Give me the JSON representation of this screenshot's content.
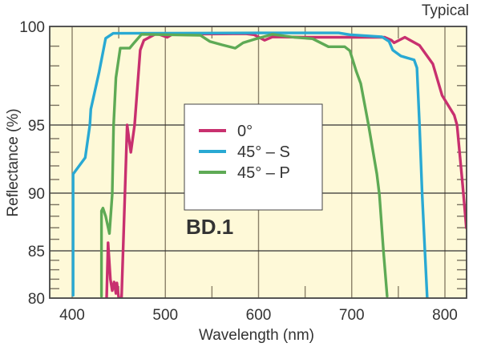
{
  "chart_data": {
    "type": "line",
    "title": "",
    "corner_note": "Typical",
    "annotation": "BD.1",
    "xlabel": "Wavelength (nm)",
    "ylabel": "Reflectance (%)",
    "xlim": [
      376,
      823
    ],
    "ylim": [
      80,
      100
    ],
    "yscale": "nonlinear (expanded toward 100)",
    "x_ticks": [
      400,
      500,
      600,
      700,
      800
    ],
    "x_minor_ticks": [
      450,
      550,
      650,
      750
    ],
    "y_ticks": [
      80,
      85,
      90,
      95,
      100
    ],
    "y_minor_step": 1,
    "grid": true,
    "legend_position": "center",
    "colors": {
      "plot_background": "#FEF9D8",
      "grid": "#333333",
      "vgrid": "#8A8068"
    },
    "series": [
      {
        "name": "0°",
        "color": "#C8306F",
        "x": [
          437,
          438.5,
          441,
          443,
          445,
          447,
          448,
          450,
          453,
          459,
          463,
          467,
          473,
          477,
          489,
          493,
          502,
          507.5,
          560,
          586,
          595,
          606.5,
          615,
          650,
          700,
          735.5,
          742.6,
          745.5,
          757,
          772.7,
          787,
          797,
          810,
          813,
          819,
          823
        ],
        "y": [
          80,
          85.7,
          82,
          80.8,
          81.7,
          80.5,
          81.6,
          80,
          80,
          95,
          93,
          95,
          98.8,
          99.3,
          99.6,
          99.6,
          99.45,
          99.6,
          99.62,
          99.63,
          99.58,
          99.3,
          99.47,
          99.45,
          99.45,
          99.45,
          99.3,
          99.17,
          99.45,
          99.04,
          98.1,
          96.5,
          95.5,
          95,
          90.6,
          87
        ]
      },
      {
        "name": "45° – S",
        "color": "#29A9D3",
        "x": [
          401,
          401,
          414,
          419,
          420,
          429,
          436,
          444,
          600,
          686,
          698,
          732.5,
          740,
          744,
          752.7,
          767,
          770,
          772.7,
          775.6,
          778.5,
          781
        ],
        "y": [
          80.3,
          91.4,
          92.6,
          95,
          95.8,
          97.7,
          99.4,
          99.65,
          99.67,
          99.67,
          99.58,
          99.47,
          99.24,
          98.8,
          98.5,
          98.3,
          97.9,
          95,
          89.9,
          85,
          80
        ]
      },
      {
        "name": "45° – P",
        "color": "#5EAA55",
        "x": [
          431.5,
          431.5,
          433,
          436,
          440,
          443,
          444.5,
          447,
          451.6,
          461.7,
          467,
          474.5,
          500,
          537.6,
          547.7,
          560.6,
          575,
          583.5,
          595,
          603.6,
          615,
          638,
          658,
          675,
          692.5,
          698,
          705,
          709.7,
          718,
          727,
          729.7,
          734,
          738
        ],
        "y": [
          80.2,
          88.45,
          88.7,
          88,
          86.5,
          89.9,
          95,
          97.4,
          98.9,
          98.9,
          99.2,
          99.6,
          99.58,
          99.55,
          99.24,
          99.07,
          98.9,
          99.17,
          99.34,
          99.45,
          99.6,
          99.45,
          99.38,
          98.97,
          98.97,
          98.77,
          97.7,
          97.1,
          95,
          91.4,
          89.85,
          85,
          80.2
        ]
      }
    ]
  }
}
